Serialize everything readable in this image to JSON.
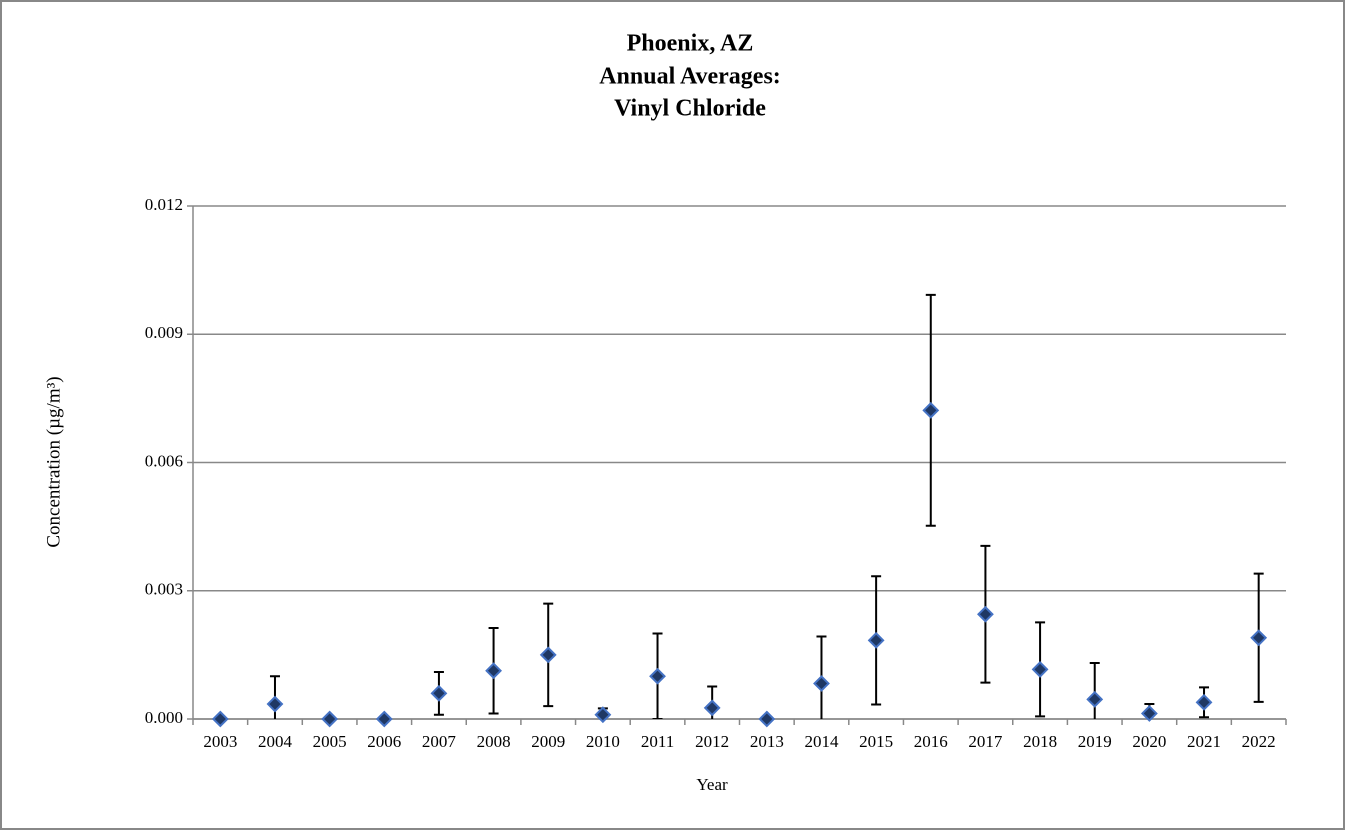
{
  "chart_data": {
    "type": "scatter-errorbar",
    "title": [
      "Phoenix, AZ",
      "Annual Averages:",
      "Vinyl Chloride"
    ],
    "x_label": "Year",
    "y_label": "Concentration (µg/m³)",
    "categories": [
      "2003",
      "2004",
      "2005",
      "2006",
      "2007",
      "2008",
      "2009",
      "2010",
      "2011",
      "2012",
      "2013",
      "2014",
      "2015",
      "2016",
      "2017",
      "2018",
      "2019",
      "2020",
      "2021",
      "2022"
    ],
    "values": [
      0,
      0.00035,
      0,
      0,
      0.0006,
      0.00113,
      0.0015,
      0.0001,
      0.001,
      0.00026,
      0,
      0.00083,
      0.00184,
      0.00722,
      0.00245,
      0.00116,
      0.00046,
      0.00013,
      0.00039,
      0.0019
    ],
    "errors": [
      0,
      0.00065,
      0,
      0,
      0.0005,
      0.001,
      0.0012,
      0.00015,
      0.001,
      0.0005,
      0,
      0.0011,
      0.0015,
      0.0027,
      0.0016,
      0.0011,
      0.00085,
      0.00022,
      0.00035,
      0.0015
    ],
    "color": "#1f3864",
    "edge_color": "#4472c4",
    "ylim": [
      0,
      0.012
    ],
    "yticks": [
      {
        "value": 0,
        "label": "0.000"
      },
      {
        "value": 0.003,
        "label": "0.003"
      },
      {
        "value": 0.006,
        "label": "0.006"
      },
      {
        "value": 0.009,
        "label": "0.009"
      },
      {
        "value": 0.012,
        "label": "0.012"
      }
    ],
    "grid": true
  }
}
